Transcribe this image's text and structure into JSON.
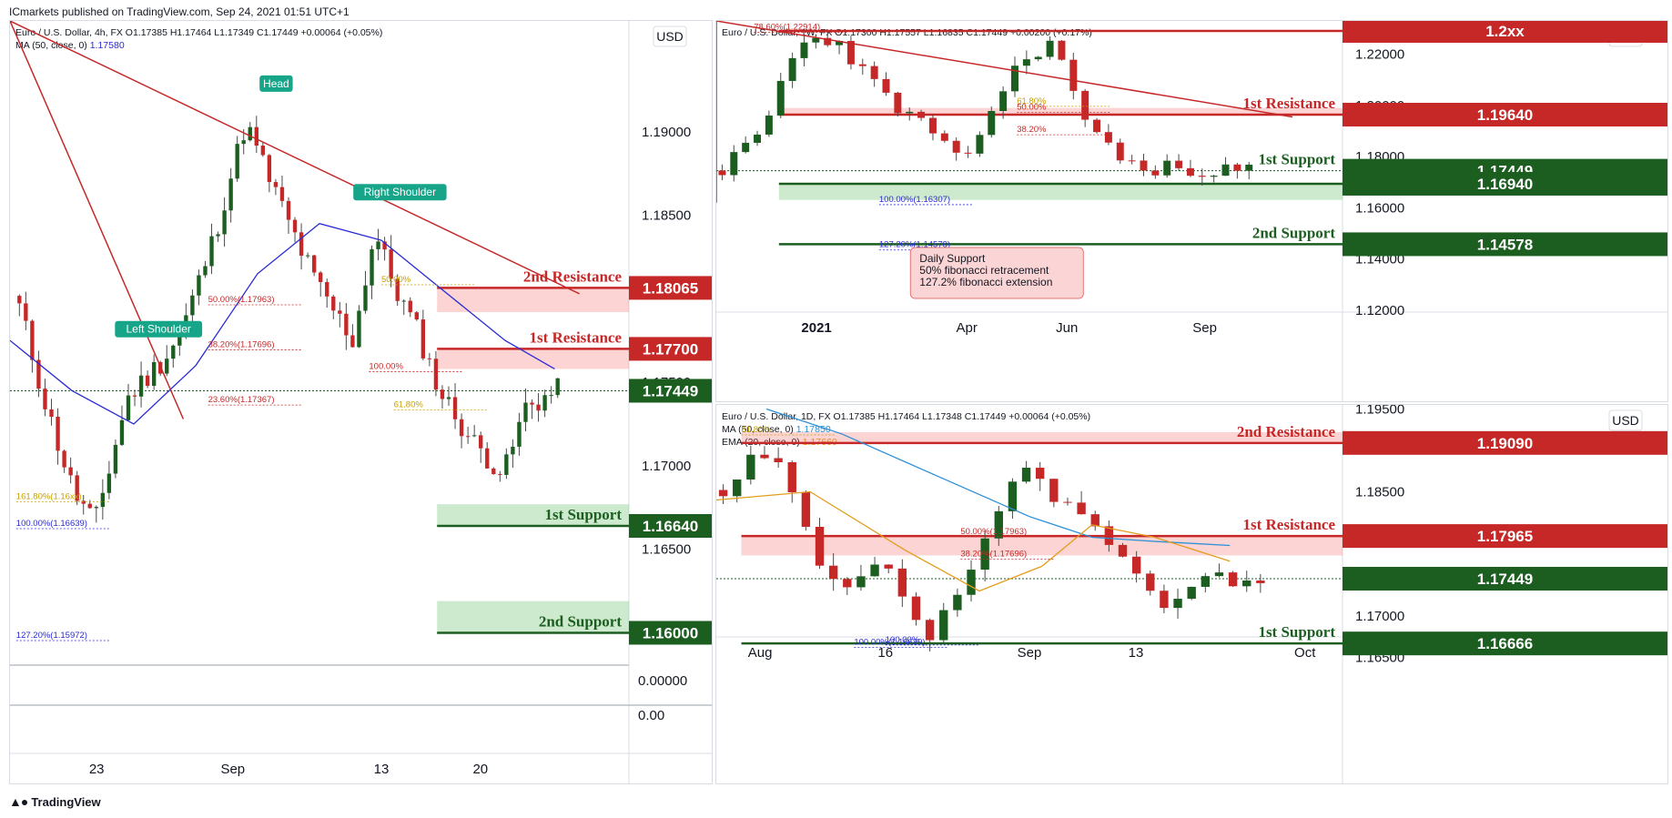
{
  "publisher": "ICmarkets published on TradingView.com, Sep 24, 2021 01:51 UTC+1",
  "footer": {
    "logo_icon": "tradingview-logo-icon",
    "brand": "TradingView"
  },
  "chart_data": [
    {
      "id": "left",
      "type": "candlestick",
      "currency": "USD",
      "legend": [
        {
          "text": "Euro / U.S. Dollar, 4h, FX  O1.17385  H1.17464  L1.17349  C1.17449  +0.00064 (+0.05%)",
          "color": "#131722"
        },
        {
          "text": "MA (50, close, 0)  ",
          "color": "#131722",
          "value": "1.17580",
          "value_color": "#2a2ad6"
        }
      ],
      "ylim": [
        1.1585,
        1.195
      ],
      "y_ticks": [
        "1.19000",
        "1.18500",
        "1.17500",
        "1.17000",
        "1.16500"
      ],
      "y_tick_values": [
        1.19,
        1.185,
        1.175,
        1.17,
        1.165
      ],
      "x_ticks": [
        "23",
        "Sep",
        "13",
        "20"
      ],
      "x_tick_pos": [
        0.14,
        0.36,
        0.6,
        0.76
      ],
      "candle_count": 85,
      "pattern_labels": [
        "Head",
        "Left Shoulder",
        "Right Shoulder"
      ],
      "fib": [
        "50.00%(1.17963)",
        "38.20%(1.17696)",
        "23.60%(1.17367)",
        "161.80%(1.16xx)",
        "100.00%(1.16639)",
        "127.20%(1.15972)",
        "100.00%",
        "61.80%",
        "50.00%"
      ],
      "levels": [
        {
          "label": "2nd Resistance",
          "price": "1.18065",
          "value": 1.18065,
          "kind": "resistance",
          "zone": [
            1.1792,
            1.18065
          ]
        },
        {
          "label": "1st Resistance",
          "price": "1.17700",
          "value": 1.177,
          "kind": "resistance",
          "zone": [
            1.1758,
            1.177
          ]
        },
        {
          "label": "",
          "price": "1.17449",
          "value": 1.17449,
          "kind": "current"
        },
        {
          "label": "1st Support",
          "price": "1.16640",
          "value": 1.1664,
          "kind": "support",
          "zone": [
            1.1664,
            1.1677
          ]
        },
        {
          "label": "2nd Support",
          "price": "1.16000",
          "value": 1.16,
          "kind": "support",
          "zone": [
            1.16,
            1.1619
          ]
        }
      ],
      "sub_pane": {
        "labels": [
          "0.00000",
          "0.00"
        ]
      }
    },
    {
      "id": "top-right",
      "type": "candlestick",
      "currency": "USD",
      "legend": [
        {
          "text": "Euro / U.S. Dollar, 1W, FX  O1.17300  H1.17557  L1.16835  C1.17449  +0.00200 (+0.17%)",
          "color": "#131722"
        }
      ],
      "ylim": [
        1.1175,
        1.233
      ],
      "y_ticks": [
        "1.22000",
        "1.20000",
        "1.18000",
        "1.16000",
        "1.14000",
        "1.12000"
      ],
      "y_tick_values": [
        1.22,
        1.2,
        1.18,
        1.16,
        1.14,
        1.12
      ],
      "x_ticks": [
        "2021",
        "Apr",
        "Jun",
        "Sep"
      ],
      "x_tick_pos": [
        0.16,
        0.4,
        0.56,
        0.78
      ],
      "candle_count": 46,
      "fib": [
        "78.60%(1.22914)",
        "61.80%",
        "50.00%",
        "38.20%",
        "100.00%(1.16307)",
        "127.20%(1.14578)"
      ],
      "levels": [
        {
          "label": "",
          "price": "1.2xx",
          "value": 1.2291,
          "kind": "resistance"
        },
        {
          "label": "1st Resistance",
          "price": "1.19640",
          "value": 1.1964,
          "kind": "resistance",
          "zone": [
            1.1964,
            1.199
          ]
        },
        {
          "label": "1st Support",
          "price": "1.17449",
          "value": 1.17449,
          "kind": "current"
        },
        {
          "label": "",
          "price": "1.16940",
          "value": 1.1694,
          "kind": "support",
          "zone": [
            1.1631,
            1.1694
          ]
        },
        {
          "label": "2nd Support",
          "price": "1.14578",
          "value": 1.14578,
          "kind": "support"
        }
      ],
      "note": [
        "Daily Support",
        "50% fibonacci retracement",
        "127.2% fibonacci extension"
      ]
    },
    {
      "id": "bottom-right",
      "type": "candlestick",
      "currency": "USD",
      "legend": [
        {
          "text": "Euro / U.S. Dollar, 1D, FX  O1.17385  H1.17464  L1.17348  C1.17449  +0.00064 (+0.05%)",
          "color": "#131722"
        },
        {
          "text": "MA (50, close, 0)  ",
          "color": "#131722",
          "value": "1.17850",
          "value_color": "#2b8fd8"
        },
        {
          "text": "EMA (20, close, 0)  ",
          "color": "#131722",
          "value": "1.17660",
          "value_color": "#e39d1a"
        }
      ],
      "ylim": [
        1.1625,
        1.1955
      ],
      "y_ticks": [
        "1.19500",
        "1.18500",
        "1.17000",
        "1.16500"
      ],
      "y_tick_values": [
        1.195,
        1.185,
        1.17,
        1.165
      ],
      "x_ticks": [
        "Aug",
        "16",
        "Sep",
        "13",
        "Oct"
      ],
      "x_tick_pos": [
        0.07,
        0.27,
        0.5,
        0.67,
        0.94
      ],
      "candle_count": 40,
      "fib": [
        "61.80%",
        "50.00%(1.17963)",
        "38.20%(1.17696)",
        "100.00%(1.16639)",
        "100.00%"
      ],
      "levels": [
        {
          "label": "2nd Resistance",
          "price": "1.19090",
          "value": 1.1909,
          "kind": "resistance",
          "zone": [
            1.1909,
            1.1922
          ]
        },
        {
          "label": "1st Resistance",
          "price": "1.17965",
          "value": 1.17965,
          "kind": "resistance",
          "zone": [
            1.1773,
            1.17965
          ]
        },
        {
          "label": "",
          "price": "1.17449",
          "value": 1.17449,
          "kind": "current"
        },
        {
          "label": "1st Support",
          "price": "1.16666",
          "value": 1.16666,
          "kind": "support"
        }
      ]
    }
  ]
}
